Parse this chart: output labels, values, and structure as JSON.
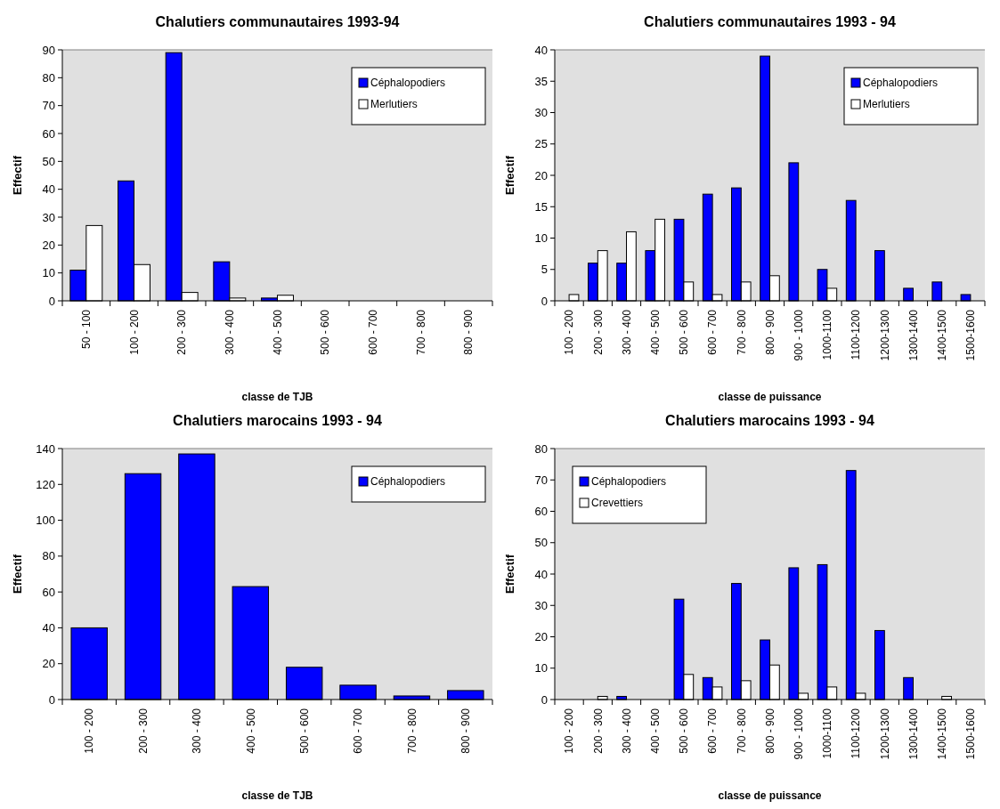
{
  "chart_data": [
    {
      "type": "bar",
      "title": "Chalutiers communautaires 1993-94",
      "xlabel": "classe de TJB",
      "ylabel": "Effectif",
      "categories": [
        "50 - 100",
        "100 - 200",
        "200 - 300",
        "300 - 400",
        "400 - 500",
        "500 - 600",
        "600 - 700",
        "700 - 800",
        "800 - 900"
      ],
      "ylim": [
        0,
        90
      ],
      "yticks": [
        0,
        10,
        20,
        30,
        40,
        50,
        60,
        70,
        80,
        90
      ],
      "legend": "top right",
      "series": [
        {
          "name": "Céphalopodiers",
          "color": "#0000ff",
          "values": [
            11,
            43,
            89,
            14,
            1,
            0,
            0,
            0,
            0
          ]
        },
        {
          "name": "Merlutiers",
          "color": "#ffffff",
          "values": [
            27,
            13,
            3,
            1,
            2,
            0,
            0,
            0,
            0
          ]
        }
      ]
    },
    {
      "type": "bar",
      "title": "Chalutiers communautaires 1993 - 94",
      "xlabel": "classe de puissance",
      "ylabel": "Effectif",
      "categories": [
        "100 - 200",
        "200 - 300",
        "300 - 400",
        "400 - 500",
        "500 - 600",
        "600 - 700",
        "700 - 800",
        "800 - 900",
        "900 - 1000",
        "1000-1100",
        "1100-1200",
        "1200-1300",
        "1300-1400",
        "1400-1500",
        "1500-1600"
      ],
      "ylim": [
        0,
        40
      ],
      "yticks": [
        0,
        5,
        10,
        15,
        20,
        25,
        30,
        35,
        40
      ],
      "legend": "top right",
      "series": [
        {
          "name": "Céphalopodiers",
          "color": "#0000ff",
          "values": [
            0,
            6,
            6,
            8,
            13,
            17,
            18,
            39,
            22,
            5,
            16,
            8,
            2,
            3,
            1
          ]
        },
        {
          "name": "Merlutiers",
          "color": "#ffffff",
          "values": [
            1,
            8,
            11,
            13,
            3,
            1,
            3,
            4,
            0,
            2,
            0,
            0,
            0,
            0,
            0
          ]
        }
      ]
    },
    {
      "type": "bar",
      "title": "Chalutiers marocains 1993 - 94",
      "xlabel": "classe de TJB",
      "ylabel": "Effectif",
      "categories": [
        "100 - 200",
        "200 - 300",
        "300 - 400",
        "400 - 500",
        "500 - 600",
        "600 - 700",
        "700 - 800",
        "800 - 900"
      ],
      "ylim": [
        0,
        140
      ],
      "yticks": [
        0,
        20,
        40,
        60,
        80,
        100,
        120,
        140
      ],
      "legend": "top right",
      "series": [
        {
          "name": "Céphalopodiers",
          "color": "#0000ff",
          "values": [
            40,
            126,
            137,
            63,
            18,
            8,
            2,
            5
          ]
        }
      ]
    },
    {
      "type": "bar",
      "title": "Chalutiers marocains 1993 - 94",
      "xlabel": "classe de puissance",
      "ylabel": "Effectif",
      "categories": [
        "100 - 200",
        "200 - 300",
        "300 - 400",
        "400 - 500",
        "500 - 600",
        "600 - 700",
        "700 - 800",
        "800 - 900",
        "900 - 1000",
        "1000-1100",
        "1100-1200",
        "1200-1300",
        "1300-1400",
        "1400-1500",
        "1500-1600"
      ],
      "ylim": [
        0,
        80
      ],
      "yticks": [
        0,
        10,
        20,
        30,
        40,
        50,
        60,
        70,
        80
      ],
      "legend": "top left",
      "series": [
        {
          "name": "Céphalopodiers",
          "color": "#0000ff",
          "values": [
            0,
            0,
            1,
            0,
            32,
            7,
            37,
            19,
            42,
            43,
            73,
            22,
            7,
            0,
            0
          ]
        },
        {
          "name": "Crevettiers",
          "color": "#ffffff",
          "values": [
            0,
            1,
            0,
            0,
            8,
            4,
            6,
            11,
            2,
            4,
            2,
            0,
            0,
            1,
            0
          ]
        }
      ]
    }
  ]
}
